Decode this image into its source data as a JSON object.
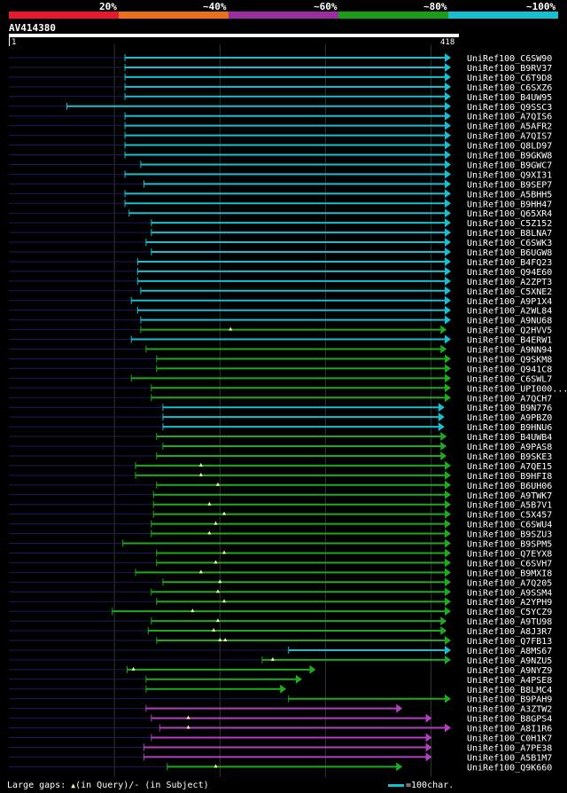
{
  "legend": {
    "labels": [
      "20%",
      "~40%",
      "~60%",
      "~80%",
      "~100%"
    ],
    "colors": [
      "#e8192c",
      "#e8701a",
      "#9a2ea0",
      "#1a9e1a",
      "#17bfd0"
    ]
  },
  "query": {
    "name": "AV414380",
    "start": "1",
    "end": "418",
    "length": 418
  },
  "colors": {
    "cyan": "#17bfd0",
    "green": "#1eaa1e",
    "magenta": "#b040c0",
    "background": "#000000",
    "grid": "#333333",
    "query_line": "#1a1a60"
  },
  "hits": [
    {
      "label": "UniRef100_C6SW90",
      "start": 110,
      "end": 418,
      "color": "cyan",
      "gaps": []
    },
    {
      "label": "UniRef100_B9RV37",
      "start": 110,
      "end": 418,
      "color": "cyan",
      "gaps": []
    },
    {
      "label": "UniRef100_C6T9D8",
      "start": 110,
      "end": 418,
      "color": "cyan",
      "gaps": []
    },
    {
      "label": "UniRef100_C6SXZ6",
      "start": 110,
      "end": 418,
      "color": "cyan",
      "gaps": []
    },
    {
      "label": "UniRef100_B4UW95",
      "start": 110,
      "end": 418,
      "color": "cyan",
      "gaps": []
    },
    {
      "label": "UniRef100_Q9SSC3",
      "start": 55,
      "end": 418,
      "color": "cyan",
      "gaps": []
    },
    {
      "label": "UniRef100_A7QIS6",
      "start": 110,
      "end": 418,
      "color": "cyan",
      "gaps": []
    },
    {
      "label": "UniRef100_A5AFR2",
      "start": 110,
      "end": 418,
      "color": "cyan",
      "gaps": []
    },
    {
      "label": "UniRef100_A7QIS7",
      "start": 110,
      "end": 418,
      "color": "cyan",
      "gaps": []
    },
    {
      "label": "UniRef100_Q8LD97",
      "start": 110,
      "end": 418,
      "color": "cyan",
      "gaps": []
    },
    {
      "label": "UniRef100_B9GKW8",
      "start": 110,
      "end": 418,
      "color": "cyan",
      "gaps": []
    },
    {
      "label": "UniRef100_B9GWC7",
      "start": 125,
      "end": 418,
      "color": "cyan",
      "gaps": []
    },
    {
      "label": "UniRef100_Q9XI31",
      "start": 110,
      "end": 418,
      "color": "cyan",
      "gaps": []
    },
    {
      "label": "UniRef100_B9SEP7",
      "start": 128,
      "end": 418,
      "color": "cyan",
      "gaps": []
    },
    {
      "label": "UniRef100_A5BHH5",
      "start": 110,
      "end": 418,
      "color": "cyan",
      "gaps": []
    },
    {
      "label": "UniRef100_B9HH47",
      "start": 110,
      "end": 418,
      "color": "cyan",
      "gaps": []
    },
    {
      "label": "UniRef100_Q65XR4",
      "start": 114,
      "end": 418,
      "color": "cyan",
      "gaps": []
    },
    {
      "label": "UniRef100_C5Z152",
      "start": 135,
      "end": 418,
      "color": "cyan",
      "gaps": []
    },
    {
      "label": "UniRef100_B8LNA7",
      "start": 135,
      "end": 418,
      "color": "cyan",
      "gaps": []
    },
    {
      "label": "UniRef100_C6SWK3",
      "start": 130,
      "end": 418,
      "color": "cyan",
      "gaps": []
    },
    {
      "label": "UniRef100_B6UGW8",
      "start": 135,
      "end": 418,
      "color": "cyan",
      "gaps": []
    },
    {
      "label": "UniRef100_B4FQ23",
      "start": 122,
      "end": 418,
      "color": "cyan",
      "gaps": []
    },
    {
      "label": "UniRef100_Q94E60",
      "start": 122,
      "end": 418,
      "color": "cyan",
      "gaps": []
    },
    {
      "label": "UniRef100_A2ZPT3",
      "start": 122,
      "end": 418,
      "color": "cyan",
      "gaps": []
    },
    {
      "label": "UniRef100_C5XNE2",
      "start": 125,
      "end": 418,
      "color": "cyan",
      "gaps": []
    },
    {
      "label": "UniRef100_A9P1X4",
      "start": 116,
      "end": 418,
      "color": "cyan",
      "gaps": []
    },
    {
      "label": "UniRef100_A2WL84",
      "start": 122,
      "end": 418,
      "color": "cyan",
      "gaps": []
    },
    {
      "label": "UniRef100_A9NU68",
      "start": 125,
      "end": 418,
      "color": "cyan",
      "gaps": []
    },
    {
      "label": "UniRef100_Q2HVV5",
      "start": 125,
      "end": 414,
      "color": "green",
      "gaps": [
        210
      ]
    },
    {
      "label": "UniRef100_B4ERW1",
      "start": 116,
      "end": 418,
      "color": "cyan",
      "gaps": []
    },
    {
      "label": "UniRef100_A9NN94",
      "start": 130,
      "end": 414,
      "color": "green",
      "gaps": []
    },
    {
      "label": "UniRef100_Q9SKM8",
      "start": 140,
      "end": 418,
      "color": "green",
      "gaps": []
    },
    {
      "label": "UniRef100_Q941C8",
      "start": 140,
      "end": 418,
      "color": "green",
      "gaps": []
    },
    {
      "label": "UniRef100_C6SWL7",
      "start": 116,
      "end": 418,
      "color": "green",
      "gaps": []
    },
    {
      "label": "UniRef100_UPI000...",
      "start": 135,
      "end": 418,
      "color": "green",
      "gaps": []
    },
    {
      "label": "UniRef100_A7QCH7",
      "start": 135,
      "end": 418,
      "color": "green",
      "gaps": []
    },
    {
      "label": "UniRef100_B9N776",
      "start": 146,
      "end": 412,
      "color": "cyan",
      "gaps": []
    },
    {
      "label": "UniRef100_A9PBZ0",
      "start": 146,
      "end": 412,
      "color": "cyan",
      "gaps": []
    },
    {
      "label": "UniRef100_B9HNU6",
      "start": 146,
      "end": 412,
      "color": "cyan",
      "gaps": []
    },
    {
      "label": "UniRef100_B4UWB4",
      "start": 140,
      "end": 414,
      "color": "green",
      "gaps": []
    },
    {
      "label": "UniRef100_A9PAS8",
      "start": 146,
      "end": 414,
      "color": "green",
      "gaps": []
    },
    {
      "label": "UniRef100_B9SKE3",
      "start": 140,
      "end": 414,
      "color": "green",
      "gaps": []
    },
    {
      "label": "UniRef100_A7QE15",
      "start": 120,
      "end": 418,
      "color": "green",
      "gaps": [
        182
      ]
    },
    {
      "label": "UniRef100_B9HFI8",
      "start": 120,
      "end": 418,
      "color": "green",
      "gaps": [
        182
      ]
    },
    {
      "label": "UniRef100_B6UH06",
      "start": 140,
      "end": 418,
      "color": "green",
      "gaps": [
        198
      ]
    },
    {
      "label": "UniRef100_A9TWK7",
      "start": 137,
      "end": 418,
      "color": "green",
      "gaps": []
    },
    {
      "label": "UniRef100_A5B7V1",
      "start": 137,
      "end": 418,
      "color": "green",
      "gaps": [
        190
      ]
    },
    {
      "label": "UniRef100_C5X457",
      "start": 137,
      "end": 418,
      "color": "green",
      "gaps": [
        204
      ]
    },
    {
      "label": "UniRef100_C6SWU4",
      "start": 135,
      "end": 418,
      "color": "green",
      "gaps": [
        196
      ]
    },
    {
      "label": "UniRef100_B9SZU3",
      "start": 135,
      "end": 418,
      "color": "green",
      "gaps": [
        190
      ]
    },
    {
      "label": "UniRef100_B9SPM5",
      "start": 108,
      "end": 418,
      "color": "green",
      "gaps": []
    },
    {
      "label": "UniRef100_Q7EYX8",
      "start": 140,
      "end": 418,
      "color": "green",
      "gaps": [
        204
      ]
    },
    {
      "label": "UniRef100_C6SVH7",
      "start": 140,
      "end": 418,
      "color": "green",
      "gaps": [
        196
      ]
    },
    {
      "label": "UniRef100_B9MXI8",
      "start": 120,
      "end": 418,
      "color": "green",
      "gaps": [
        182
      ]
    },
    {
      "label": "UniRef100_A7Q205",
      "start": 146,
      "end": 418,
      "color": "green",
      "gaps": [
        200
      ]
    },
    {
      "label": "UniRef100_A9SSM4",
      "start": 135,
      "end": 418,
      "color": "green",
      "gaps": [
        198
      ]
    },
    {
      "label": "UniRef100_A2YPH9",
      "start": 140,
      "end": 418,
      "color": "green",
      "gaps": [
        204
      ]
    },
    {
      "label": "UniRef100_C5YCZ9",
      "start": 98,
      "end": 418,
      "color": "green",
      "gaps": [
        174
      ]
    },
    {
      "label": "UniRef100_A9TU98",
      "start": 135,
      "end": 414,
      "color": "green",
      "gaps": [
        198
      ]
    },
    {
      "label": "UniRef100_A8J3R7",
      "start": 132,
      "end": 414,
      "color": "green",
      "gaps": [
        194
      ]
    },
    {
      "label": "UniRef100_Q7FB13",
      "start": 140,
      "end": 418,
      "color": "green",
      "gaps": [
        200,
        205
      ]
    },
    {
      "label": "UniRef100_A8MS67",
      "start": 265,
      "end": 418,
      "color": "cyan",
      "gaps": []
    },
    {
      "label": "UniRef100_A9NZU5",
      "start": 240,
      "end": 418,
      "color": "green",
      "gaps": [
        250
      ]
    },
    {
      "label": "UniRef100_A9NYZ9",
      "start": 112,
      "end": 290,
      "color": "green",
      "gaps": [
        118
      ]
    },
    {
      "label": "UniRef100_A4PSE8",
      "start": 130,
      "end": 277,
      "color": "green",
      "gaps": []
    },
    {
      "label": "UniRef100_B8LMC4",
      "start": 130,
      "end": 262,
      "color": "green",
      "gaps": []
    },
    {
      "label": "UniRef100_B9PAH9",
      "start": 265,
      "end": 418,
      "color": "green",
      "gaps": []
    },
    {
      "label": "UniRef100_A3ZTW2",
      "start": 130,
      "end": 372,
      "color": "magenta",
      "gaps": []
    },
    {
      "label": "UniRef100_B8GPS4",
      "start": 135,
      "end": 400,
      "color": "magenta",
      "gaps": [
        170
      ]
    },
    {
      "label": "UniRef100_A8I1R6",
      "start": 143,
      "end": 418,
      "color": "magenta",
      "gaps": [
        170
      ]
    },
    {
      "label": "UniRef100_C0H1K7",
      "start": 135,
      "end": 400,
      "color": "magenta",
      "gaps": []
    },
    {
      "label": "UniRef100_A7PE38",
      "start": 128,
      "end": 400,
      "color": "magenta",
      "gaps": []
    },
    {
      "label": "UniRef100_A5B1M7",
      "start": 128,
      "end": 400,
      "color": "magenta",
      "gaps": []
    },
    {
      "label": "UniRef100_Q9K660",
      "start": 150,
      "end": 372,
      "color": "green",
      "gaps": [
        196
      ]
    }
  ],
  "footer": {
    "gaps_text": "Large gaps:",
    "query_part": "(in Query)/",
    "subject_part": "- (in Subject)",
    "scale_text": "=100char."
  }
}
